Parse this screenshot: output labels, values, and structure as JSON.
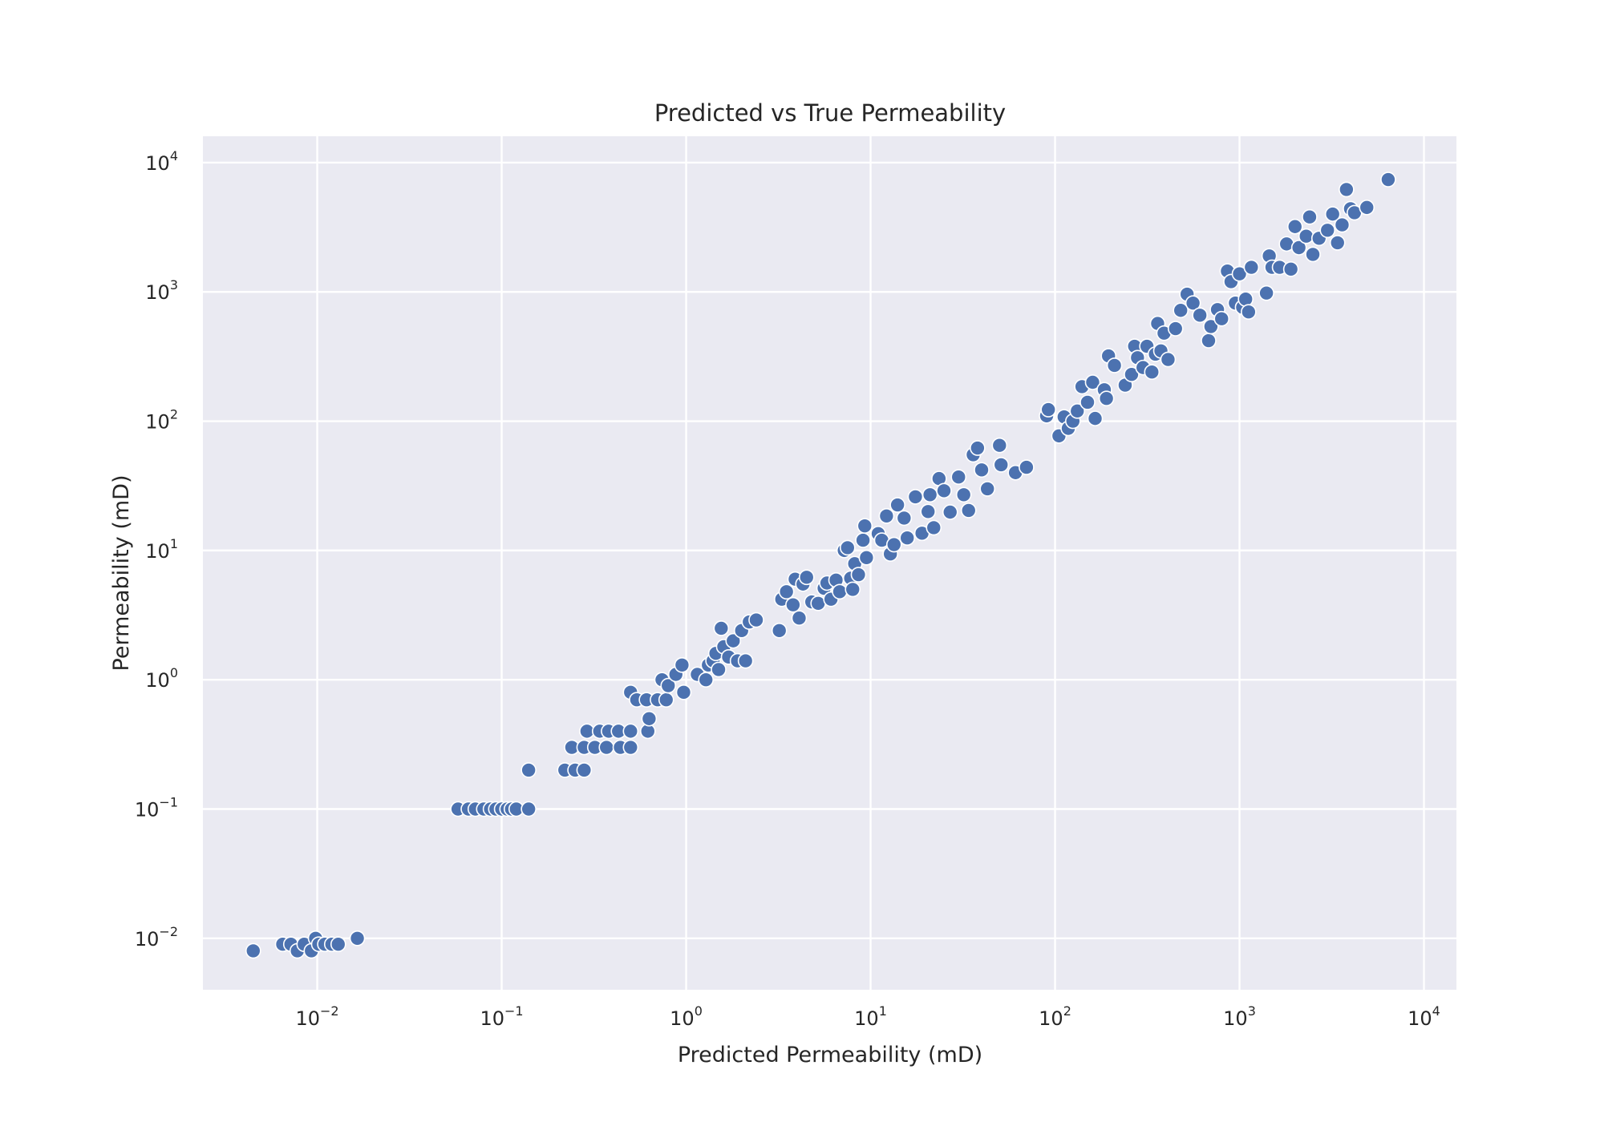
{
  "chart_data": {
    "type": "scatter",
    "title": "Predicted vs True Permeability",
    "xlabel": "Predicted Permeability (mD)",
    "ylabel": "Permeability (mD)",
    "xscale": "log",
    "yscale": "log",
    "xlim": [
      0.0024,
      15000
    ],
    "ylim": [
      0.004,
      16000
    ],
    "grid": true,
    "xticks": [
      {
        "base": "10",
        "exp": "−2",
        "value": 0.01
      },
      {
        "base": "10",
        "exp": "−1",
        "value": 0.1
      },
      {
        "base": "10",
        "exp": "0",
        "value": 1
      },
      {
        "base": "10",
        "exp": "1",
        "value": 10
      },
      {
        "base": "10",
        "exp": "2",
        "value": 100
      },
      {
        "base": "10",
        "exp": "3",
        "value": 1000
      },
      {
        "base": "10",
        "exp": "4",
        "value": 10000
      }
    ],
    "yticks": [
      {
        "base": "10",
        "exp": "−2",
        "value": 0.01
      },
      {
        "base": "10",
        "exp": "−1",
        "value": 0.1
      },
      {
        "base": "10",
        "exp": "0",
        "value": 1
      },
      {
        "base": "10",
        "exp": "1",
        "value": 10
      },
      {
        "base": "10",
        "exp": "2",
        "value": 100
      },
      {
        "base": "10",
        "exp": "3",
        "value": 1000
      },
      {
        "base": "10",
        "exp": "4",
        "value": 10000
      }
    ],
    "points": [
      [
        0.0045,
        0.008
      ],
      [
        0.0065,
        0.009
      ],
      [
        0.0072,
        0.009
      ],
      [
        0.0078,
        0.008
      ],
      [
        0.0085,
        0.009
      ],
      [
        0.0093,
        0.008
      ],
      [
        0.0098,
        0.01
      ],
      [
        0.0102,
        0.009
      ],
      [
        0.011,
        0.009
      ],
      [
        0.012,
        0.009
      ],
      [
        0.013,
        0.009
      ],
      [
        0.0165,
        0.01
      ],
      [
        0.058,
        0.1
      ],
      [
        0.066,
        0.1
      ],
      [
        0.072,
        0.1
      ],
      [
        0.08,
        0.1
      ],
      [
        0.087,
        0.1
      ],
      [
        0.093,
        0.1
      ],
      [
        0.1,
        0.1
      ],
      [
        0.107,
        0.1
      ],
      [
        0.113,
        0.1
      ],
      [
        0.12,
        0.1
      ],
      [
        0.14,
        0.1
      ],
      [
        0.14,
        0.2
      ],
      [
        0.22,
        0.2
      ],
      [
        0.24,
        0.3
      ],
      [
        0.25,
        0.2
      ],
      [
        0.28,
        0.2
      ],
      [
        0.28,
        0.3
      ],
      [
        0.29,
        0.4
      ],
      [
        0.32,
        0.3
      ],
      [
        0.34,
        0.4
      ],
      [
        0.37,
        0.3
      ],
      [
        0.38,
        0.4
      ],
      [
        0.43,
        0.4
      ],
      [
        0.44,
        0.3
      ],
      [
        0.5,
        0.4
      ],
      [
        0.5,
        0.3
      ],
      [
        0.5,
        0.8
      ],
      [
        0.54,
        0.7
      ],
      [
        0.61,
        0.7
      ],
      [
        0.62,
        0.4
      ],
      [
        0.63,
        0.5
      ],
      [
        0.7,
        0.7
      ],
      [
        0.74,
        1.0
      ],
      [
        0.78,
        0.7
      ],
      [
        0.8,
        0.9
      ],
      [
        0.88,
        1.1
      ],
      [
        0.95,
        1.3
      ],
      [
        0.97,
        0.8
      ],
      [
        1.15,
        1.1
      ],
      [
        1.28,
        1.0
      ],
      [
        1.32,
        1.3
      ],
      [
        1.4,
        1.4
      ],
      [
        1.45,
        1.6
      ],
      [
        1.5,
        1.2
      ],
      [
        1.55,
        2.5
      ],
      [
        1.6,
        1.8
      ],
      [
        1.7,
        1.5
      ],
      [
        1.8,
        2.0
      ],
      [
        1.9,
        1.4
      ],
      [
        2.0,
        2.4
      ],
      [
        2.1,
        1.4
      ],
      [
        2.2,
        2.8
      ],
      [
        2.4,
        2.9
      ],
      [
        3.2,
        2.4
      ],
      [
        3.3,
        4.2
      ],
      [
        3.5,
        4.8
      ],
      [
        3.8,
        3.8
      ],
      [
        3.9,
        6.0
      ],
      [
        4.1,
        3.0
      ],
      [
        4.3,
        5.5
      ],
      [
        4.5,
        6.2
      ],
      [
        4.8,
        4.0
      ],
      [
        5.2,
        3.9
      ],
      [
        5.6,
        5.1
      ],
      [
        5.8,
        5.6
      ],
      [
        6.1,
        4.2
      ],
      [
        6.5,
        5.9
      ],
      [
        6.8,
        4.8
      ],
      [
        7.2,
        10.0
      ],
      [
        7.5,
        10.5
      ],
      [
        7.8,
        6.1
      ],
      [
        8.0,
        5.0
      ],
      [
        8.2,
        7.9
      ],
      [
        8.6,
        6.5
      ],
      [
        9.1,
        12.0
      ],
      [
        9.3,
        15.5
      ],
      [
        9.5,
        8.8
      ],
      [
        11.0,
        13.5
      ],
      [
        11.5,
        12.0
      ],
      [
        12.2,
        18.5
      ],
      [
        12.8,
        9.4
      ],
      [
        13.4,
        11.1
      ],
      [
        14.0,
        22.5
      ],
      [
        15.2,
        17.8
      ],
      [
        15.8,
        12.5
      ],
      [
        17.5,
        26.0
      ],
      [
        19.0,
        13.6
      ],
      [
        20.5,
        20.0
      ],
      [
        21.0,
        27.0
      ],
      [
        22.0,
        15.0
      ],
      [
        23.5,
        36.0
      ],
      [
        25.0,
        29.0
      ],
      [
        27.0,
        19.8
      ],
      [
        30.0,
        37.0
      ],
      [
        32.0,
        27.0
      ],
      [
        34.0,
        20.4
      ],
      [
        36.0,
        55.0
      ],
      [
        38.0,
        62.0
      ],
      [
        40.0,
        42.0
      ],
      [
        43.0,
        30.0
      ],
      [
        50.0,
        65.0
      ],
      [
        51.0,
        46.0
      ],
      [
        61.0,
        40.0
      ],
      [
        70.0,
        44.0
      ],
      [
        90.0,
        110.0
      ],
      [
        92.0,
        123.0
      ],
      [
        105.0,
        77.0
      ],
      [
        112.0,
        108.0
      ],
      [
        118.0,
        88.0
      ],
      [
        125.0,
        100.0
      ],
      [
        132.0,
        120.0
      ],
      [
        140.0,
        185.0
      ],
      [
        150.0,
        140.0
      ],
      [
        160.0,
        200.0
      ],
      [
        165.0,
        105.0
      ],
      [
        185.0,
        175.0
      ],
      [
        190.0,
        150.0
      ],
      [
        195.0,
        320.0
      ],
      [
        210.0,
        270.0
      ],
      [
        240.0,
        190.0
      ],
      [
        260.0,
        230.0
      ],
      [
        270.0,
        380.0
      ],
      [
        280.0,
        310.0
      ],
      [
        300.0,
        260.0
      ],
      [
        315.0,
        380.0
      ],
      [
        335.0,
        240.0
      ],
      [
        350.0,
        330.0
      ],
      [
        360.0,
        570.0
      ],
      [
        375.0,
        350.0
      ],
      [
        390.0,
        480.0
      ],
      [
        410.0,
        300.0
      ],
      [
        450.0,
        520.0
      ],
      [
        480.0,
        720.0
      ],
      [
        520.0,
        960.0
      ],
      [
        560.0,
        820.0
      ],
      [
        610.0,
        660.0
      ],
      [
        680.0,
        420.0
      ],
      [
        700.0,
        540.0
      ],
      [
        760.0,
        730.0
      ],
      [
        800.0,
        620.0
      ],
      [
        860.0,
        1450.0
      ],
      [
        900.0,
        1200.0
      ],
      [
        950.0,
        820.0
      ],
      [
        1000.0,
        1380.0
      ],
      [
        1040.0,
        760.0
      ],
      [
        1080.0,
        880.0
      ],
      [
        1120.0,
        700.0
      ],
      [
        1160.0,
        1550.0
      ],
      [
        1400.0,
        980.0
      ],
      [
        1450.0,
        1900.0
      ],
      [
        1500.0,
        1550.0
      ],
      [
        1650.0,
        1550.0
      ],
      [
        1800.0,
        2350.0
      ],
      [
        1900.0,
        1500.0
      ],
      [
        2000.0,
        3200.0
      ],
      [
        2100.0,
        2200.0
      ],
      [
        2300.0,
        2700.0
      ],
      [
        2400.0,
        3800.0
      ],
      [
        2500.0,
        1950.0
      ],
      [
        2700.0,
        2600.0
      ],
      [
        3000.0,
        3000.0
      ],
      [
        3200.0,
        4000.0
      ],
      [
        3400.0,
        2400.0
      ],
      [
        3600.0,
        3300.0
      ],
      [
        3800.0,
        6200.0
      ],
      [
        4000.0,
        4400.0
      ],
      [
        4200.0,
        4100.0
      ],
      [
        4900.0,
        4500.0
      ],
      [
        6400.0,
        7400.0
      ]
    ]
  }
}
